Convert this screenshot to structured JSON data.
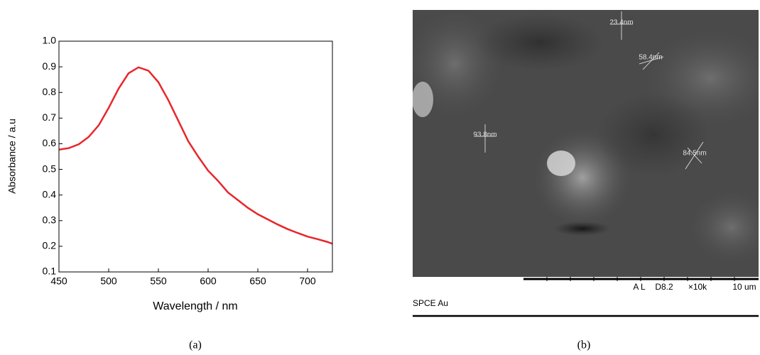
{
  "chart_data": {
    "type": "line",
    "caption": "(a)",
    "x_label": "Wavelength / nm",
    "y_label": "Absorbance / a.u",
    "x": [
      450,
      460,
      470,
      480,
      490,
      500,
      510,
      520,
      530,
      540,
      550,
      560,
      570,
      580,
      590,
      600,
      610,
      620,
      630,
      640,
      650,
      660,
      670,
      680,
      690,
      700,
      710,
      720,
      725
    ],
    "series": [
      {
        "color": "#e8262b",
        "values": [
          0.577,
          0.583,
          0.598,
          0.627,
          0.672,
          0.74,
          0.815,
          0.875,
          0.898,
          0.885,
          0.84,
          0.77,
          0.69,
          0.61,
          0.55,
          0.495,
          0.455,
          0.41,
          0.38,
          0.35,
          0.325,
          0.305,
          0.285,
          0.267,
          0.252,
          0.238,
          0.228,
          0.217,
          0.21
        ]
      }
    ],
    "xlim": [
      450,
      725
    ],
    "ylim": [
      0.1,
      1.0
    ],
    "xticks": [
      450,
      500,
      550,
      600,
      650,
      700
    ],
    "yticks": [
      0.1,
      0.2,
      0.3,
      0.4,
      0.5,
      0.6,
      0.7,
      0.8,
      0.9,
      {
        "value": 1,
        "label": "1.0"
      }
    ]
  },
  "sem_image": {
    "measurements": [
      "23.4nm",
      "58.4nm",
      "93.8nm",
      "84.5nm"
    ],
    "info": [
      "A L",
      "D8.2",
      "×10k",
      "10 um"
    ],
    "sample": "SPCE Au",
    "caption": "(b)"
  }
}
